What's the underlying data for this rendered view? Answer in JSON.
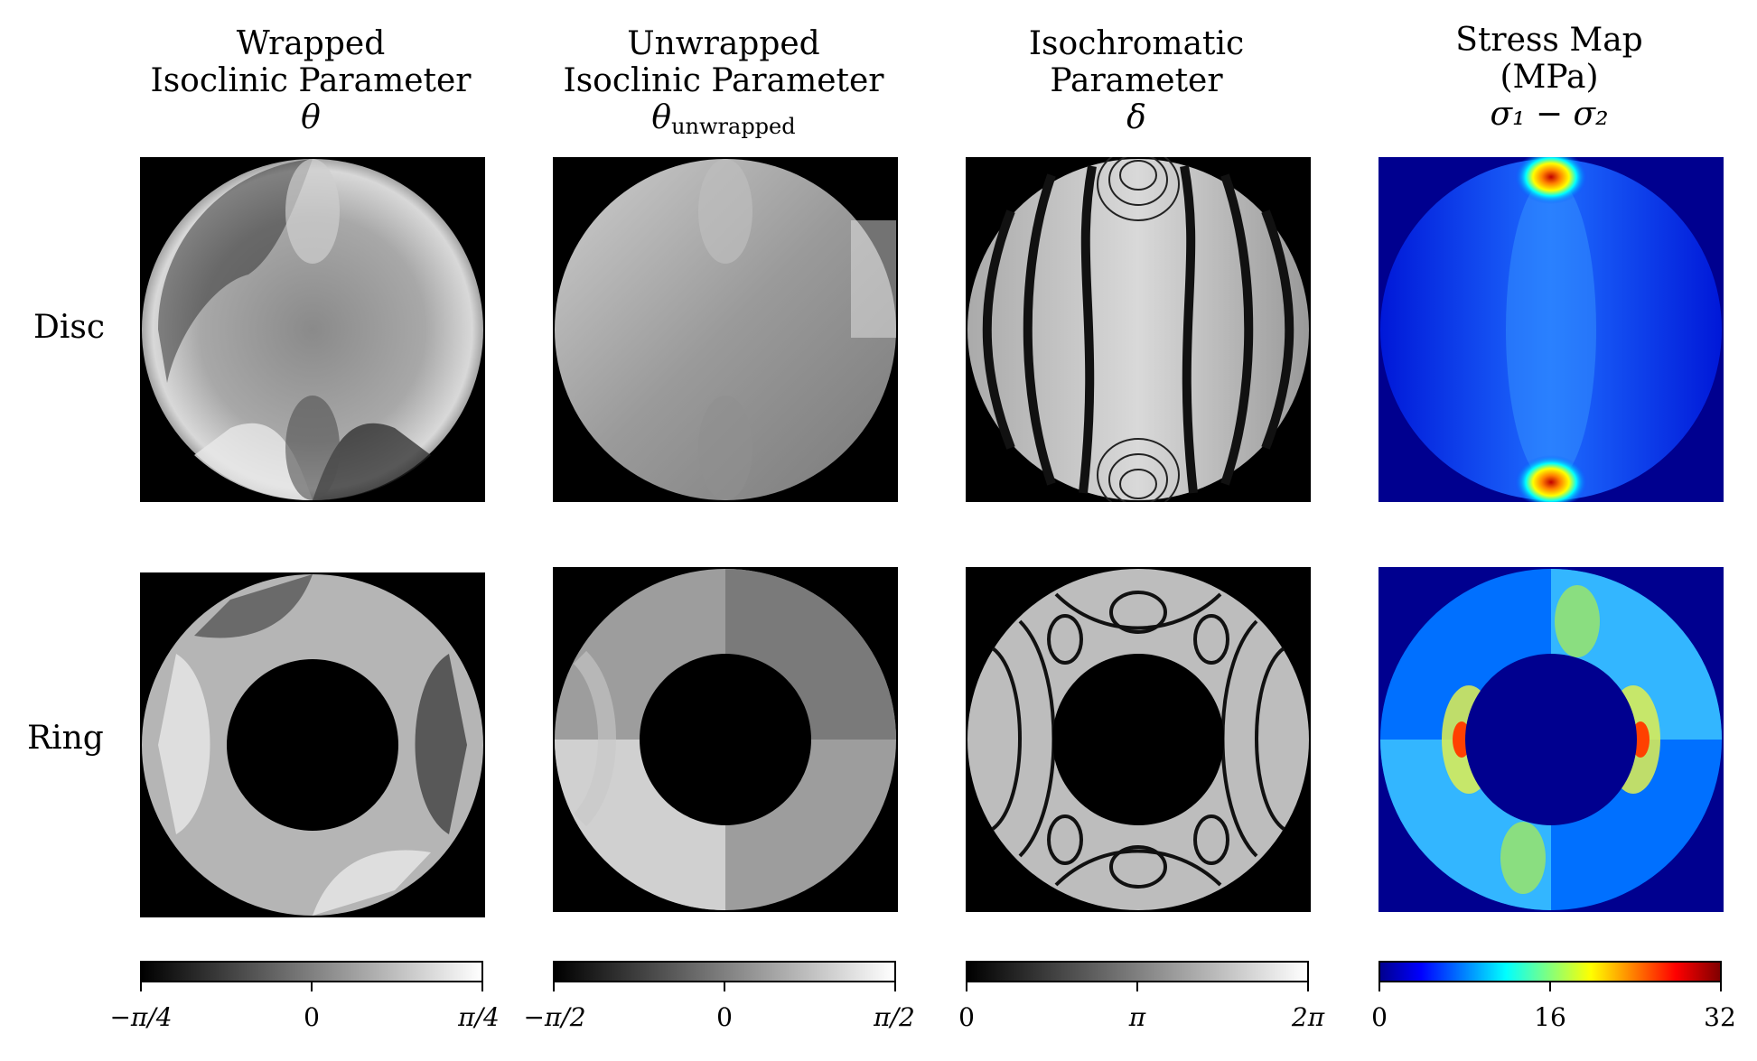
{
  "columns": [
    {
      "title_line1": "Wrapped",
      "title_line2": "Isoclinic Parameter",
      "symbol": "θ",
      "symbol_sub": ""
    },
    {
      "title_line1": "Unwrapped",
      "title_line2": "Isoclinic Parameter",
      "symbol": "θ",
      "symbol_sub": "unwrapped"
    },
    {
      "title_line1": "Isochromatic",
      "title_line2": "Parameter",
      "symbol": "δ",
      "symbol_sub": ""
    },
    {
      "title_line1": "Stress Map",
      "title_line2": "(MPa)",
      "symbol": "σ₁ − σ₂",
      "symbol_sub": ""
    }
  ],
  "rows": [
    {
      "label": "Disc"
    },
    {
      "label": "Ring"
    }
  ],
  "colorbars": [
    {
      "colormap": "gray",
      "ticks": [
        "−π/4",
        "0",
        "π/4"
      ]
    },
    {
      "colormap": "gray",
      "ticks": [
        "−π/2",
        "0",
        "π/2"
      ]
    },
    {
      "colormap": "gray",
      "ticks": [
        "0",
        "π",
        "2π"
      ]
    },
    {
      "colormap": "jet",
      "ticks": [
        "0",
        "16",
        "32"
      ]
    }
  ],
  "colors": {
    "stress_background": "#00008f",
    "panel_background": "#000000"
  }
}
